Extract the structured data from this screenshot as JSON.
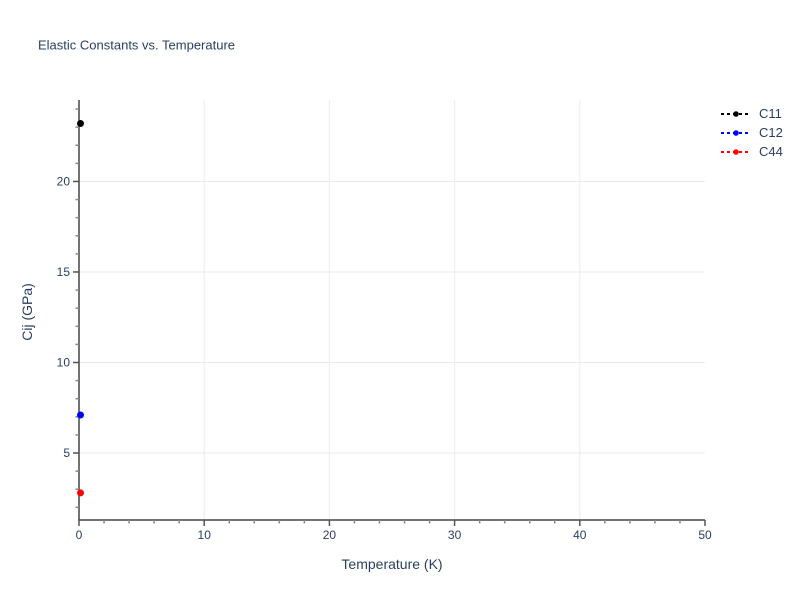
{
  "title": "Elastic Constants vs. Temperature",
  "colors": {
    "text": "#2a3f5f",
    "grid": "#ebebeb",
    "axis": "#444444",
    "major_tick": "#555555",
    "minor_tick": "#888888",
    "background": "#ffffff"
  },
  "chart_data": {
    "type": "scatter",
    "title": "Elastic Constants vs. Temperature",
    "xlabel": "Temperature (K)",
    "ylabel": "Cij (GPa)",
    "x": [
      0
    ],
    "series": [
      {
        "name": "C11",
        "color": "#000000",
        "values": [
          23.2
        ]
      },
      {
        "name": "C12",
        "color": "#0000ff",
        "values": [
          7.1
        ]
      },
      {
        "name": "C44",
        "color": "#ff0000",
        "values": [
          2.8
        ]
      }
    ],
    "xlim": [
      0,
      50
    ],
    "ylim": [
      1.3,
      24.5
    ],
    "x_major_ticks": [
      0,
      10,
      20,
      30,
      40,
      50
    ],
    "x_minor_step": 2,
    "y_major_ticks": [
      5,
      10,
      15,
      20
    ],
    "y_minor_step": 1,
    "gridlines_x": [
      10,
      20,
      30,
      40
    ],
    "gridlines_y": [
      5,
      10,
      15,
      20
    ],
    "grid": true,
    "legend_position": "outside-top-right",
    "line_style": "dashed",
    "marker": "circle"
  }
}
